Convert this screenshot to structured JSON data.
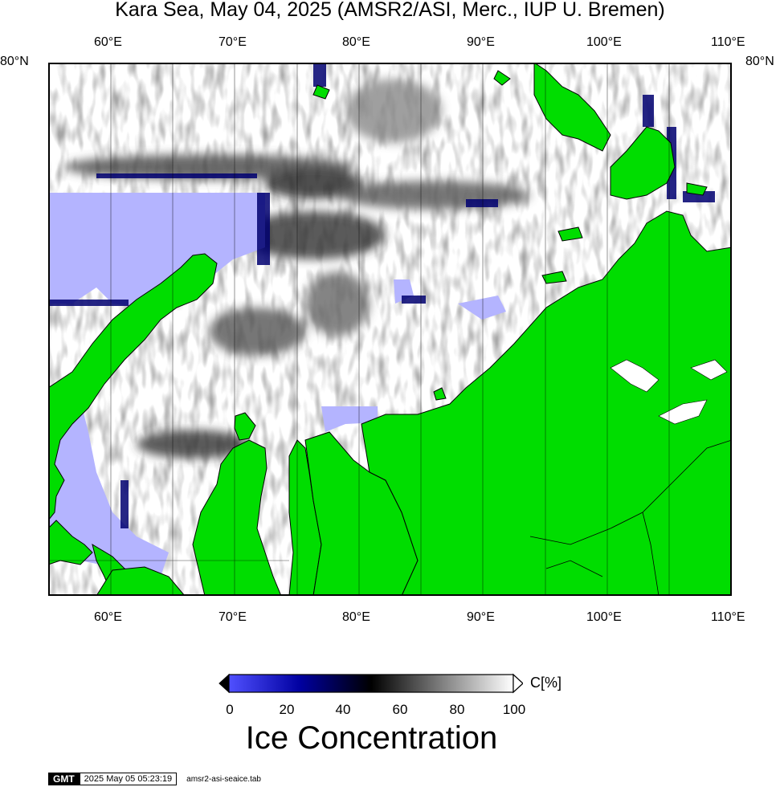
{
  "title": "Kara Sea, May 04, 2025 (AMSR2/ASI, Merc., IUP U. Bremen)",
  "map": {
    "lon_labels": [
      "60°E",
      "70°E",
      "80°E",
      "90°E",
      "100°E",
      "110°E"
    ],
    "lat_label_left": "80°N",
    "lat_label_right": "80°N",
    "colors": {
      "land": "#00dd00",
      "open_water": "#b4b4ff",
      "ice_high": "#ffffff",
      "ice_mid": "#808080",
      "ice_low": "#000050",
      "graticule": "#000000"
    }
  },
  "colorbar": {
    "unit_label": "C[%]",
    "ticks": [
      "0",
      "20",
      "40",
      "60",
      "80",
      "100"
    ],
    "title": "Ice Concentration",
    "colors": [
      "#5050ff",
      "#0000a0",
      "#000000",
      "#808080",
      "#ffffff"
    ]
  },
  "footer": {
    "logo": "GMT",
    "timestamp": "2025 May 05 05:23:19",
    "source_file": "amsr2-asi-seaice.tab"
  }
}
